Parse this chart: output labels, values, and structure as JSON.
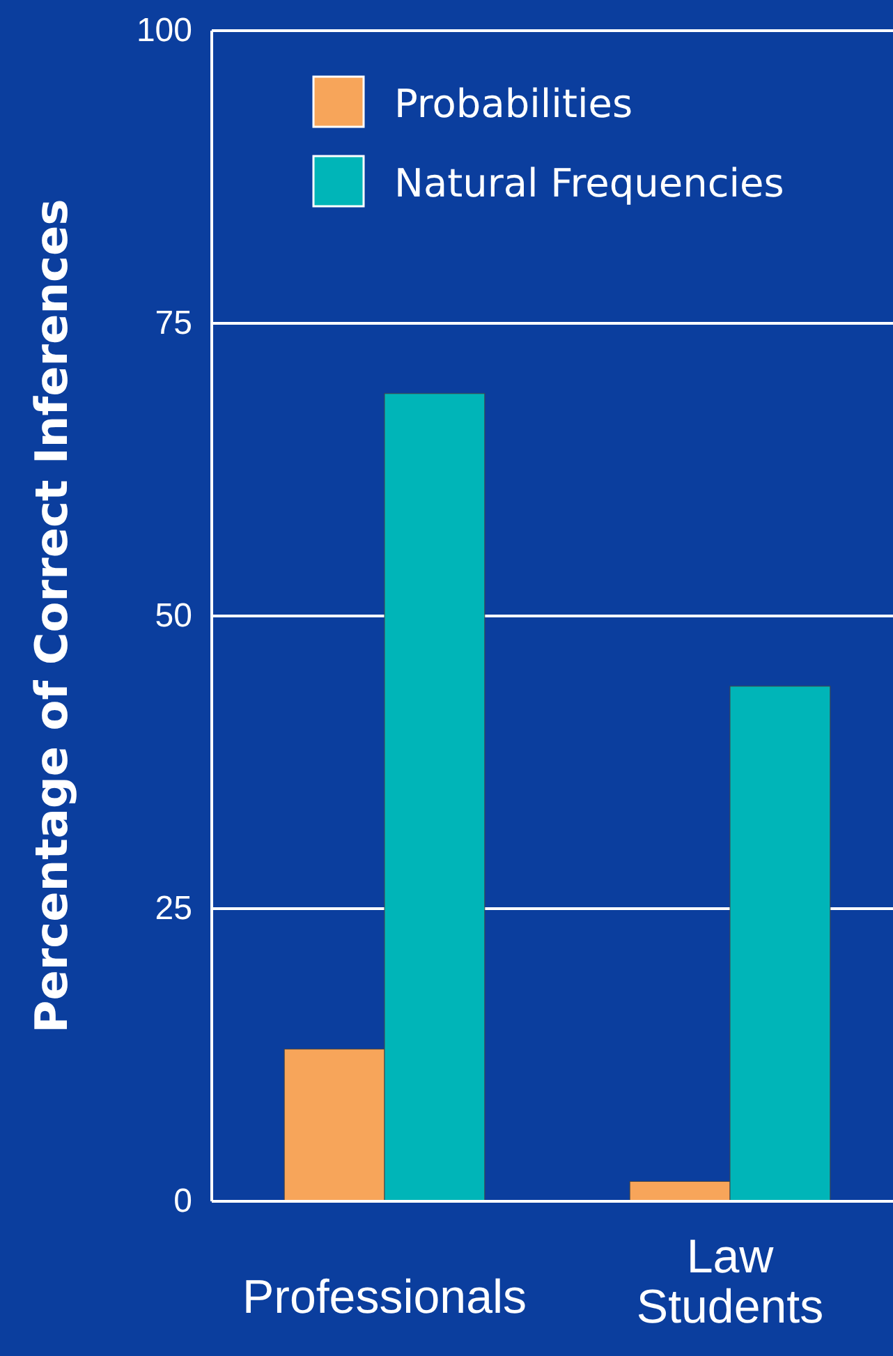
{
  "chart_data": {
    "type": "bar",
    "ylabel": "Percentage of Correct Inferences",
    "categories": [
      "Professionals",
      "Law Students"
    ],
    "series": [
      {
        "name": "Probabilities",
        "color": "#f7a55a",
        "values": [
          13,
          1.7
        ]
      },
      {
        "name": "Natural Frequencies",
        "color": "#00b5b8",
        "values": [
          69,
          44
        ]
      }
    ],
    "ylim": [
      0,
      100
    ],
    "yticks": [
      0,
      25,
      50,
      75,
      100
    ],
    "grid": "y",
    "legend": "top right"
  }
}
